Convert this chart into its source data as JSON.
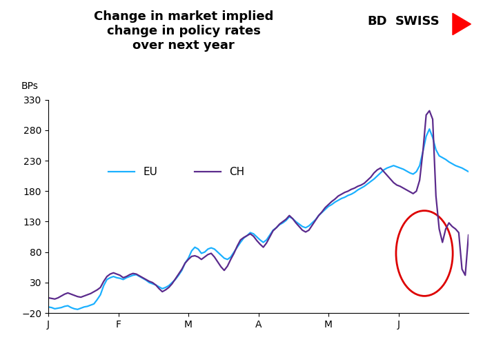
{
  "title": "Change in market implied\nchange in policy rates\nover next year",
  "ylabel": "BPs",
  "ylim": [
    -20,
    330
  ],
  "yticks": [
    -20,
    30,
    80,
    130,
    180,
    230,
    280,
    330
  ],
  "x_labels": [
    "J",
    "F",
    "M",
    "A",
    "M",
    "J"
  ],
  "eu_color": "#1ab0ff",
  "ch_color": "#5b2a8c",
  "background_color": "#ffffff",
  "circle_color": "#dd0000",
  "legend_eu": "EU",
  "legend_ch": "CH",
  "eu_data": [
    -10,
    -11,
    -13,
    -12,
    -11,
    -9,
    -8,
    -11,
    -13,
    -14,
    -12,
    -10,
    -9,
    -7,
    -5,
    2,
    10,
    25,
    35,
    38,
    40,
    38,
    37,
    35,
    38,
    40,
    42,
    43,
    40,
    37,
    34,
    30,
    28,
    26,
    23,
    20,
    22,
    25,
    30,
    35,
    42,
    50,
    62,
    70,
    82,
    88,
    85,
    78,
    80,
    85,
    87,
    85,
    80,
    75,
    70,
    68,
    72,
    80,
    88,
    96,
    103,
    107,
    112,
    110,
    105,
    100,
    96,
    100,
    108,
    116,
    120,
    125,
    128,
    132,
    138,
    135,
    130,
    126,
    122,
    120,
    123,
    128,
    133,
    140,
    145,
    150,
    155,
    158,
    162,
    165,
    168,
    170,
    173,
    175,
    178,
    182,
    185,
    188,
    192,
    196,
    200,
    205,
    210,
    215,
    218,
    220,
    222,
    220,
    218,
    216,
    213,
    210,
    208,
    212,
    222,
    245,
    270,
    282,
    268,
    248,
    238,
    235,
    232,
    228,
    225,
    222,
    220,
    218,
    215,
    212
  ],
  "ch_data": [
    5,
    4,
    3,
    5,
    8,
    11,
    13,
    11,
    9,
    7,
    6,
    8,
    10,
    12,
    15,
    18,
    22,
    32,
    40,
    44,
    46,
    44,
    42,
    38,
    40,
    43,
    45,
    44,
    41,
    38,
    35,
    32,
    30,
    26,
    20,
    15,
    18,
    22,
    28,
    36,
    44,
    52,
    62,
    68,
    73,
    74,
    72,
    68,
    72,
    76,
    78,
    72,
    64,
    56,
    50,
    57,
    68,
    78,
    90,
    100,
    104,
    107,
    110,
    106,
    99,
    93,
    88,
    95,
    105,
    115,
    120,
    126,
    130,
    134,
    140,
    135,
    128,
    122,
    116,
    113,
    116,
    124,
    132,
    140,
    146,
    153,
    158,
    163,
    167,
    172,
    175,
    178,
    180,
    183,
    185,
    188,
    190,
    193,
    198,
    203,
    210,
    215,
    218,
    212,
    206,
    200,
    194,
    190,
    188,
    185,
    182,
    179,
    176,
    180,
    198,
    245,
    305,
    312,
    298,
    172,
    118,
    96,
    118,
    128,
    122,
    118,
    112,
    52,
    42,
    108
  ]
}
